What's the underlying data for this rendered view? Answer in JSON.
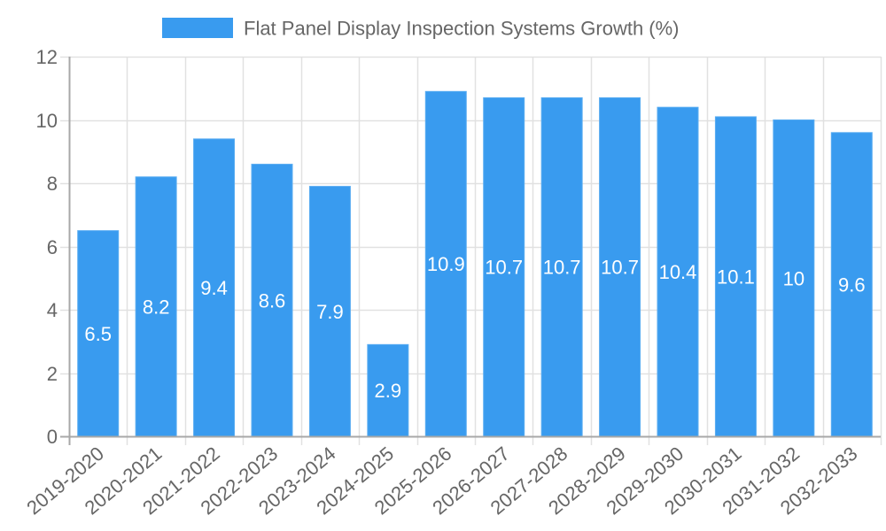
{
  "legend": {
    "label": "Flat Panel Display Inspection Systems Growth (%)",
    "color": "#399BEF"
  },
  "colors": {
    "bar_fill": "#399BEF",
    "bar_border": "#5AADF2",
    "grid": "#E1E1E1",
    "axis": "#A8A8A8",
    "text": "#666666",
    "data_label": "#FFFFFF"
  },
  "y_axis": {
    "ticks": [
      "0",
      "2",
      "4",
      "6",
      "8",
      "10",
      "12"
    ]
  },
  "chart_data": {
    "type": "bar",
    "title": "",
    "xlabel": "",
    "ylabel": "",
    "ylim": [
      0,
      12
    ],
    "y_ticks": [
      0,
      2,
      4,
      6,
      8,
      10,
      12
    ],
    "grid": true,
    "legend_position": "top",
    "categories": [
      "2019-2020",
      "2020-2021",
      "2021-2022",
      "2022-2023",
      "2023-2024",
      "2024-2025",
      "2025-2026",
      "2026-2027",
      "2027-2028",
      "2028-2029",
      "2029-2030",
      "2030-2031",
      "2031-2032",
      "2032-2033"
    ],
    "series": [
      {
        "name": "Flat Panel Display Inspection Systems Growth (%)",
        "values": [
          6.5,
          8.2,
          9.4,
          8.6,
          7.9,
          2.9,
          10.9,
          10.7,
          10.7,
          10.7,
          10.4,
          10.1,
          10,
          9.6
        ],
        "data_labels": [
          "6.5",
          "8.2",
          "9.4",
          "8.6",
          "7.9",
          "2.9",
          "10.9",
          "10.7",
          "10.7",
          "10.7",
          "10.4",
          "10.1",
          "10",
          "9.6"
        ]
      }
    ]
  }
}
